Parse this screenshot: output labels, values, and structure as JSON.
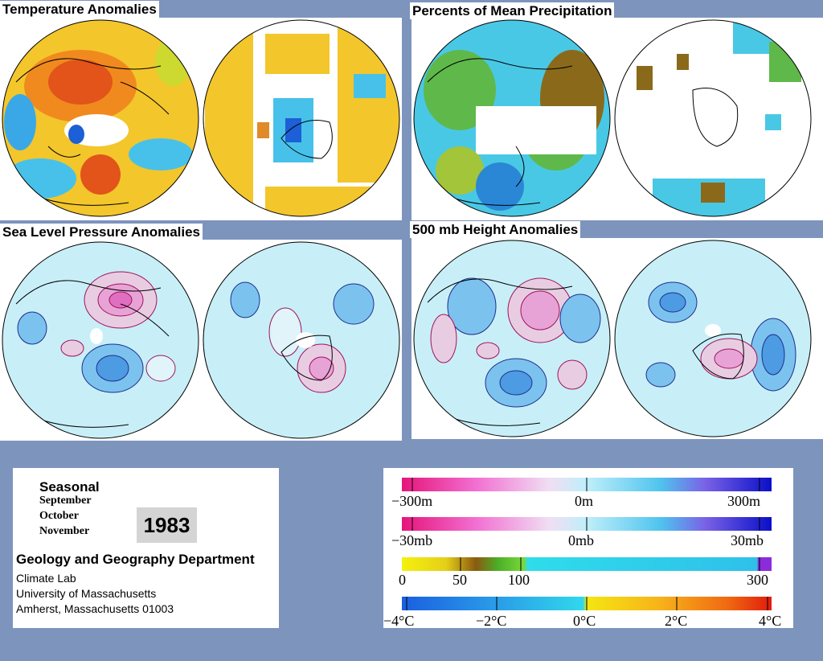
{
  "panels": {
    "temperature": {
      "title": "Temperature Anomalies"
    },
    "precipitation": {
      "title": "Percents of Mean Precipitation"
    },
    "slp": {
      "title": "Sea Level Pressure Anomalies"
    },
    "height500": {
      "title": "500 mb Height Anomalies"
    }
  },
  "info": {
    "season_label": "Seasonal",
    "months": [
      "September",
      "October",
      "November"
    ],
    "year": "1983",
    "department": "Geology and Geography Department",
    "lab": "Climate Lab",
    "university": "University of Massachusetts",
    "address": "Amherst, Massachusetts 01003"
  },
  "legend": {
    "height_scale": {
      "min": "−300m",
      "mid": "0m",
      "max": "300m"
    },
    "pressure_scale": {
      "min": "−30mb",
      "mid": "0mb",
      "max": "30mb"
    },
    "precip_scale": {
      "v0": "0",
      "v50": "50",
      "v100": "100",
      "v300": "300"
    },
    "temp_scale": {
      "m4": "−4°C",
      "m2": "−2°C",
      "z": "0°C",
      "p2": "2°C",
      "p4": "4°C"
    }
  },
  "colors": {
    "background": "#7d94bd",
    "temp_warm": "#e2541a",
    "temp_mild": "#f2c52c",
    "temp_cool": "#2aa1e8",
    "precip_dry": "#8a6a1a",
    "precip_mid": "#4fb44a",
    "precip_wet": "#4ed0e6",
    "contour_positive": "#a0125a",
    "contour_negative": "#1d2f8a",
    "field_fill": "#c8eff8"
  }
}
